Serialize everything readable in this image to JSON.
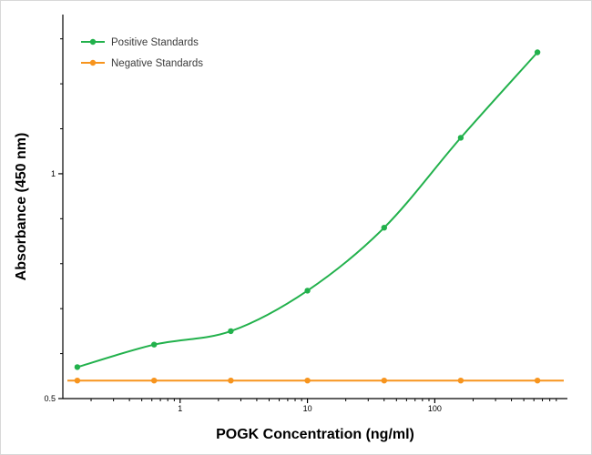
{
  "figure": {
    "background": "#ffffff",
    "border_color": "#d8d8d8"
  },
  "chart_data": {
    "type": "line",
    "title": "",
    "xlabel": "POGK Concentration (ng/ml)",
    "ylabel": "Absorbance (450 nm)",
    "x_scale": "log",
    "y_scale": "linear",
    "xlim": [
      0.12,
      1100
    ],
    "ylim": [
      0.5,
      1.354
    ],
    "grid": false,
    "legend_position": "top-left",
    "x_major_ticks": [
      1,
      10,
      100
    ],
    "x_major_tick_labels": [
      "1",
      "10",
      "100"
    ],
    "x_minor_ticks": [
      0.2,
      0.3,
      0.4,
      0.5,
      0.6,
      0.7,
      0.8,
      0.9,
      2,
      3,
      4,
      5,
      6,
      7,
      8,
      9,
      20,
      30,
      40,
      50,
      60,
      70,
      80,
      90,
      200,
      300,
      400,
      500,
      600,
      700,
      800,
      900
    ],
    "y_major_ticks": [
      0.5,
      1
    ],
    "y_major_tick_labels": [
      "0.5",
      "1"
    ],
    "y_minor_ticks": [
      0.6,
      0.7,
      0.8,
      0.9,
      1.1,
      1.2,
      1.3
    ],
    "axis_color": "#000000",
    "series": [
      {
        "name": "Positive Standards",
        "color": "#22b14c",
        "marker": "circle",
        "smooth": true,
        "extend_full_width": false,
        "x": [
          0.156,
          0.625,
          2.5,
          10,
          40,
          160,
          640
        ],
        "y": [
          0.57,
          0.62,
          0.65,
          0.74,
          0.88,
          1.08,
          1.27
        ]
      },
      {
        "name": "Negative Standards",
        "color": "#f7941d",
        "marker": "circle",
        "smooth": false,
        "extend_full_width": true,
        "x": [
          0.156,
          0.625,
          2.5,
          10,
          40,
          160,
          640
        ],
        "y": [
          0.54,
          0.54,
          0.54,
          0.54,
          0.54,
          0.54,
          0.54
        ]
      }
    ]
  }
}
